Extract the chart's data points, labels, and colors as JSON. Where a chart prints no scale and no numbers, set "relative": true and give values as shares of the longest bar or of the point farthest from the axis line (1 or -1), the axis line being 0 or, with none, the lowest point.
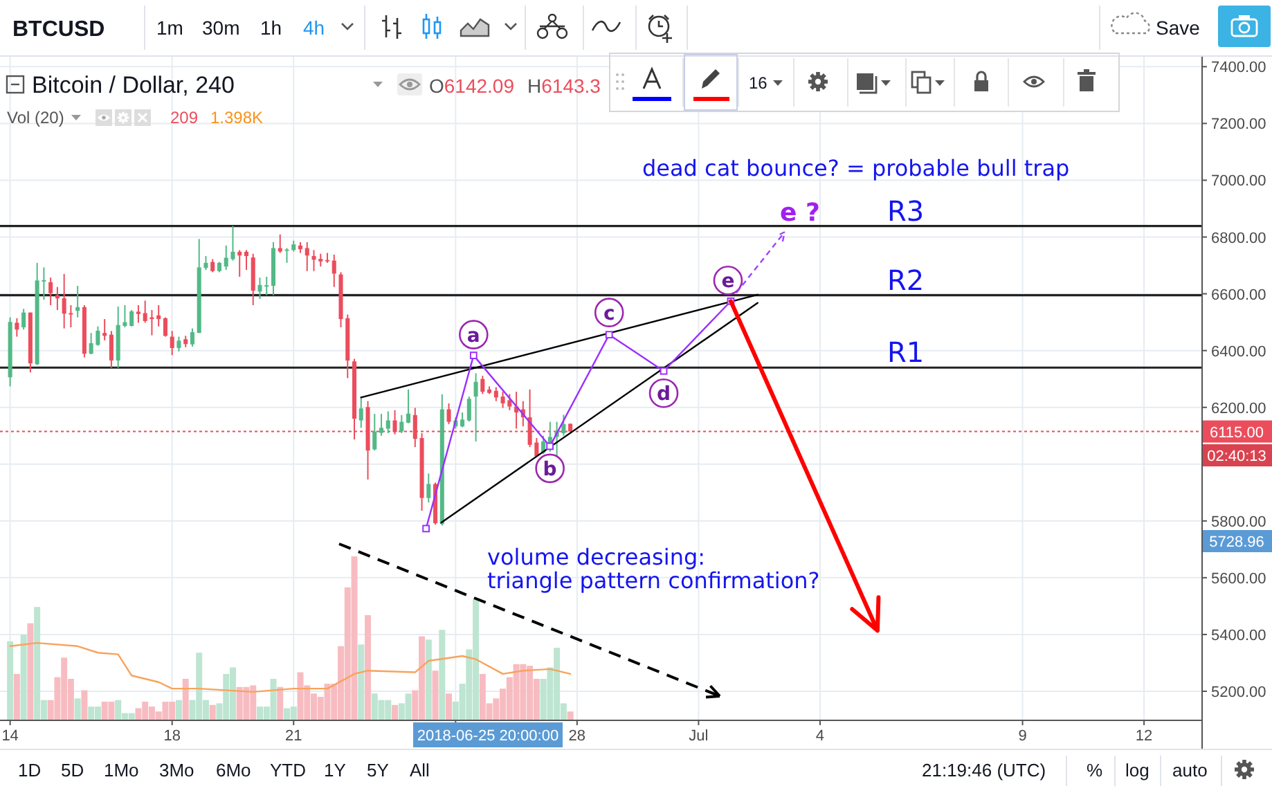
{
  "chart_data": [
    {
      "type": "candlestick",
      "title": "Bitcoin / Dollar, 240",
      "x": [
        "2018-06-14T00:00",
        "2018-06-14T04:00",
        "2018-06-14T08:00",
        "2018-06-14T12:00",
        "2018-06-14T16:00",
        "2018-06-14T20:00",
        "2018-06-15T00:00",
        "2018-06-15T04:00",
        "2018-06-15T08:00",
        "2018-06-15T12:00",
        "2018-06-15T16:00",
        "2018-06-15T20:00",
        "2018-06-16T00:00",
        "2018-06-16T04:00",
        "2018-06-16T08:00",
        "2018-06-16T12:00",
        "2018-06-16T16:00",
        "2018-06-16T20:00",
        "2018-06-17T00:00",
        "2018-06-17T04:00",
        "2018-06-17T08:00",
        "2018-06-17T12:00",
        "2018-06-17T16:00",
        "2018-06-17T20:00",
        "2018-06-18T00:00",
        "2018-06-18T04:00",
        "2018-06-18T08:00",
        "2018-06-18T12:00",
        "2018-06-18T16:00",
        "2018-06-18T20:00",
        "2018-06-19T00:00",
        "2018-06-19T04:00",
        "2018-06-19T08:00",
        "2018-06-19T12:00",
        "2018-06-19T16:00",
        "2018-06-19T20:00",
        "2018-06-20T00:00",
        "2018-06-20T04:00",
        "2018-06-20T08:00",
        "2018-06-20T12:00",
        "2018-06-20T16:00",
        "2018-06-20T20:00",
        "2018-06-21T00:00",
        "2018-06-21T04:00",
        "2018-06-21T08:00",
        "2018-06-21T12:00",
        "2018-06-21T16:00",
        "2018-06-21T20:00",
        "2018-06-22T00:00",
        "2018-06-22T04:00",
        "2018-06-22T08:00",
        "2018-06-22T12:00",
        "2018-06-22T16:00",
        "2018-06-22T20:00",
        "2018-06-23T00:00",
        "2018-06-23T04:00",
        "2018-06-23T08:00",
        "2018-06-23T12:00",
        "2018-06-23T16:00",
        "2018-06-23T20:00",
        "2018-06-24T00:00",
        "2018-06-24T04:00",
        "2018-06-24T08:00",
        "2018-06-24T12:00",
        "2018-06-24T16:00",
        "2018-06-24T20:00",
        "2018-06-25T00:00",
        "2018-06-25T04:00",
        "2018-06-25T08:00",
        "2018-06-25T12:00",
        "2018-06-25T16:00",
        "2018-06-25T20:00",
        "2018-06-26T00:00",
        "2018-06-26T04:00",
        "2018-06-26T08:00",
        "2018-06-26T12:00",
        "2018-06-26T16:00",
        "2018-06-26T20:00",
        "2018-06-27T00:00",
        "2018-06-27T04:00",
        "2018-06-27T08:00",
        "2018-06-27T12:00",
        "2018-06-27T16:00",
        "2018-06-27T20:00"
      ],
      "ohlc": [
        [
          6306,
          6517,
          6274,
          6501
        ],
        [
          6498,
          6514,
          6449,
          6474
        ],
        [
          6482,
          6547,
          6474,
          6534
        ],
        [
          6534,
          6534,
          6323,
          6355
        ],
        [
          6352,
          6709,
          6349,
          6647
        ],
        [
          6644,
          6693,
          6579,
          6648
        ],
        [
          6641,
          6657,
          6560,
          6602
        ],
        [
          6595,
          6624,
          6543,
          6584
        ],
        [
          6584,
          6670,
          6478,
          6530
        ],
        [
          6532,
          6560,
          6482,
          6528
        ],
        [
          6540,
          6628,
          6517,
          6553
        ],
        [
          6553,
          6560,
          6376,
          6389
        ],
        [
          6389,
          6462,
          6387,
          6426
        ],
        [
          6420,
          6485,
          6417,
          6470
        ],
        [
          6462,
          6511,
          6436,
          6452
        ],
        [
          6456,
          6469,
          6339,
          6365
        ],
        [
          6365,
          6555,
          6339,
          6490
        ],
        [
          6487,
          6560,
          6482,
          6500
        ],
        [
          6487,
          6543,
          6485,
          6538
        ],
        [
          6537,
          6560,
          6498,
          6529
        ],
        [
          6532,
          6576,
          6498,
          6504
        ],
        [
          6517,
          6543,
          6454,
          6511
        ],
        [
          6524,
          6560,
          6485,
          6511
        ],
        [
          6514,
          6517,
          6449,
          6452
        ],
        [
          6449,
          6469,
          6384,
          6409
        ],
        [
          6409,
          6449,
          6397,
          6435
        ],
        [
          6440,
          6452,
          6412,
          6423
        ],
        [
          6422,
          6478,
          6414,
          6465
        ],
        [
          6462,
          6793,
          6462,
          6693
        ],
        [
          6691,
          6733,
          6684,
          6709
        ],
        [
          6712,
          6722,
          6676,
          6680
        ],
        [
          6680,
          6712,
          6676,
          6709
        ],
        [
          6696,
          6770,
          6684,
          6727
        ],
        [
          6722,
          6839,
          6717,
          6748
        ],
        [
          6748,
          6754,
          6660,
          6735
        ],
        [
          6748,
          6754,
          6684,
          6733
        ],
        [
          6728,
          6741,
          6560,
          6611
        ],
        [
          6608,
          6657,
          6582,
          6631
        ],
        [
          6626,
          6660,
          6595,
          6630
        ],
        [
          6628,
          6782,
          6595,
          6761
        ],
        [
          6761,
          6809,
          6744,
          6749
        ],
        [
          6752,
          6761,
          6709,
          6756
        ],
        [
          6754,
          6787,
          6749,
          6774
        ],
        [
          6770,
          6782,
          6744,
          6757
        ],
        [
          6761,
          6782,
          6680,
          6735
        ],
        [
          6733,
          6754,
          6680,
          6720
        ],
        [
          6723,
          6741,
          6696,
          6714
        ],
        [
          6719,
          6744,
          6709,
          6715
        ],
        [
          6717,
          6738,
          6624,
          6671
        ],
        [
          6668,
          6676,
          6482,
          6511
        ],
        [
          6514,
          6527,
          6303,
          6365
        ],
        [
          6362,
          6371,
          6087,
          6160
        ],
        [
          6154,
          6238,
          6128,
          6196
        ],
        [
          6201,
          6222,
          5946,
          6048
        ],
        [
          6052,
          6177,
          6048,
          6115
        ],
        [
          6110,
          6177,
          6100,
          6128
        ],
        [
          6125,
          6186,
          6109,
          6154
        ],
        [
          6154,
          6190,
          6105,
          6113
        ],
        [
          6115,
          6173,
          6109,
          6149
        ],
        [
          6146,
          6263,
          6144,
          6178
        ],
        [
          6173,
          6198,
          6060,
          6089
        ],
        [
          6092,
          6109,
          5836,
          5881
        ],
        [
          5881,
          5967,
          5865,
          5930
        ],
        [
          5930,
          5935,
          5787,
          5792
        ],
        [
          5789,
          6246,
          5784,
          6193
        ],
        [
          6193,
          6214,
          6141,
          6149
        ],
        [
          6133,
          6165,
          6125,
          6154
        ],
        [
          6133,
          6182,
          6130,
          6157
        ],
        [
          6154,
          6238,
          6150,
          6230
        ],
        [
          6238,
          6320,
          6080,
          6290
        ],
        [
          6300,
          6311,
          6247,
          6255
        ],
        [
          6263,
          6274,
          6247,
          6251
        ],
        [
          6258,
          6271,
          6222,
          6235
        ],
        [
          6238,
          6255,
          6198,
          6214
        ],
        [
          6225,
          6247,
          6190,
          6203
        ],
        [
          6203,
          6255,
          6125,
          6182
        ],
        [
          6193,
          6222,
          6133,
          6165
        ],
        [
          6165,
          6263,
          6060,
          6068
        ],
        [
          6076,
          6092,
          6028,
          6028
        ],
        [
          6040,
          6100,
          6036,
          6080
        ],
        [
          6063,
          6149,
          6044,
          6096
        ],
        [
          6096,
          6149,
          6028,
          6117
        ],
        [
          6109,
          6174,
          6100,
          6141
        ],
        [
          6142.09,
          6143.3,
          6112,
          6115
        ]
      ],
      "colors": [
        "#53b987",
        "#eb4d5c",
        "#53b987",
        "#eb4d5c",
        "#53b987",
        "#53b987",
        "#eb4d5c",
        "#eb4d5c",
        "#eb4d5c",
        "#eb4d5c",
        "#53b987",
        "#eb4d5c",
        "#53b987",
        "#53b987",
        "#eb4d5c",
        "#eb4d5c",
        "#53b987",
        "#53b987",
        "#53b987",
        "#eb4d5c",
        "#eb4d5c",
        "#eb4d5c",
        "#eb4d5c",
        "#eb4d5c",
        "#eb4d5c",
        "#53b987",
        "#eb4d5c",
        "#53b987",
        "#53b987",
        "#53b987",
        "#eb4d5c",
        "#53b987",
        "#53b987",
        "#53b987",
        "#eb4d5c",
        "#eb4d5c",
        "#eb4d5c",
        "#53b987",
        "#53b987",
        "#53b987",
        "#eb4d5c",
        "#53b987",
        "#53b987",
        "#eb4d5c",
        "#eb4d5c",
        "#eb4d5c",
        "#eb4d5c",
        "#eb4d5c",
        "#eb4d5c",
        "#eb4d5c",
        "#eb4d5c",
        "#eb4d5c",
        "#53b987",
        "#eb4d5c",
        "#53b987",
        "#53b987",
        "#53b987",
        "#eb4d5c",
        "#53b987",
        "#53b987",
        "#eb4d5c",
        "#eb4d5c",
        "#53b987",
        "#eb4d5c",
        "#53b987",
        "#eb4d5c",
        "#53b987",
        "#53b987",
        "#53b987",
        "#53b987",
        "#eb4d5c",
        "#eb4d5c",
        "#eb4d5c",
        "#eb4d5c",
        "#eb4d5c",
        "#eb4d5c",
        "#eb4d5c",
        "#eb4d5c",
        "#eb4d5c",
        "#53b987",
        "#53b987",
        "#53b987",
        "#53b987",
        "#eb4d5c"
      ],
      "xlim": [
        "2018-06-13T18:00",
        "2018-07-13T10:00"
      ],
      "xticks": [
        {
          "value": "2018-06-14",
          "label": "14"
        },
        {
          "value": "2018-06-18",
          "label": "18"
        },
        {
          "value": "2018-06-21",
          "label": "21"
        },
        {
          "value": "2018-06-25",
          "label": null
        },
        {
          "value": "2018-06-28",
          "label": "28"
        },
        {
          "value": "2018-07-01",
          "label": "Jul"
        },
        {
          "value": "2018-07-04",
          "label": "4"
        },
        {
          "value": "2018-07-09",
          "label": "9"
        },
        {
          "value": "2018-07-12",
          "label": "12"
        }
      ],
      "ylim": [
        5100,
        7435
      ],
      "yticks": [
        {
          "value": 5200,
          "label": "5200.00"
        },
        {
          "value": 5400,
          "label": "5400.00"
        },
        {
          "value": 5600,
          "label": "5600.00"
        },
        {
          "value": 5800,
          "label": "5800.00"
        },
        {
          "value": 6000,
          "label": null
        },
        {
          "value": 6200,
          "label": "6200.00"
        },
        {
          "value": 6400,
          "label": "6400.00"
        },
        {
          "value": 6600,
          "label": "6600.00"
        },
        {
          "value": 6800,
          "label": "6800.00"
        },
        {
          "value": 7000,
          "label": "7000.00"
        },
        {
          "value": 7200,
          "label": "7200.00"
        },
        {
          "value": 7400,
          "label": "7400.00"
        }
      ],
      "grid": true,
      "series": [
        {
          "type": "line",
          "color": "#000000",
          "x": [
            "2018-06-22T16:00",
            "2018-07-02T11:00"
          ],
          "values": [
            6235,
            6597
          ]
        },
        {
          "type": "line",
          "color": "#000000",
          "x": [
            "2018-06-24T15:30",
            "2018-07-02T11:00"
          ],
          "values": [
            5794,
            6568
          ]
        },
        {
          "type": "line",
          "color": "#9b30ff",
          "marker": "square",
          "x": [
            "2018-06-24T06:30",
            "2018-06-25T10:40",
            "2018-06-27T07:55",
            "2018-06-28T19:00",
            "2018-06-30T03:20",
            "2018-07-01T19:05"
          ],
          "values": [
            5773,
            6383,
            6063,
            6456,
            6328,
            6574
          ]
        }
      ],
      "ref_lines": [
        {
          "axis": "y",
          "value": 6839,
          "label": "R3",
          "color": "#222222"
        },
        {
          "axis": "y",
          "value": 6595,
          "label": "R2",
          "color": "#222222"
        },
        {
          "axis": "y",
          "value": 6340,
          "label": "R1",
          "color": "#222222"
        },
        {
          "axis": "y",
          "value": 6115,
          "label": "6115.00",
          "color": "#eb4d5c",
          "line_style": "dotted"
        }
      ],
      "annotations": [
        "BTCUSD",
        "1m",
        "30m",
        "1h",
        "4h",
        "Save",
        "O6142.09",
        "H6143.3",
        "16",
        "1D",
        "5D",
        "1Mo",
        "3Mo",
        "6Mo",
        "YTD",
        "1Y",
        "5Y",
        "All",
        "21:19:46 (UTC)",
        "%",
        "log",
        "auto",
        "dead cat bounce? = probable bull trap",
        "02:40:13",
        "5728.96",
        "2018-06-25 20:00:00",
        {
          "text": "a",
          "x": "2018-06-25T10:40",
          "y": 6383
        },
        {
          "text": "b",
          "x": "2018-06-27T07:55",
          "y": 6063
        },
        {
          "text": "c",
          "x": "2018-06-28T19:00",
          "y": 6456
        },
        {
          "text": "d",
          "x": "2018-06-30T03:20",
          "y": 6328
        },
        {
          "text": "e",
          "x": "2018-07-01T19:05",
          "y": 6574
        },
        {
          "text": "e ?",
          "x": "2018-07-01T19:05",
          "y": 6574
        }
      ]
    },
    {
      "type": "bar",
      "title": "Vol (20)",
      "relative": true,
      "xlim": [
        "2018-06-13T18:00",
        "2018-07-13T10:00"
      ],
      "series": [
        {
          "type": "bar",
          "x": [
            "2018-06-14T00:00",
            "2018-06-14T04:00",
            "2018-06-14T08:00",
            "2018-06-14T12:00",
            "2018-06-14T16:00",
            "2018-06-14T20:00",
            "2018-06-15T00:00",
            "2018-06-15T04:00",
            "2018-06-15T08:00",
            "2018-06-15T12:00",
            "2018-06-15T16:00",
            "2018-06-15T20:00",
            "2018-06-16T00:00",
            "2018-06-16T04:00",
            "2018-06-16T08:00",
            "2018-06-16T12:00",
            "2018-06-16T16:00",
            "2018-06-16T20:00",
            "2018-06-17T00:00",
            "2018-06-17T04:00",
            "2018-06-17T08:00",
            "2018-06-17T12:00",
            "2018-06-17T16:00",
            "2018-06-17T20:00",
            "2018-06-18T00:00",
            "2018-06-18T04:00",
            "2018-06-18T08:00",
            "2018-06-18T12:00",
            "2018-06-18T16:00",
            "2018-06-18T20:00",
            "2018-06-19T00:00",
            "2018-06-19T04:00",
            "2018-06-19T08:00",
            "2018-06-19T12:00",
            "2018-06-19T16:00",
            "2018-06-19T20:00",
            "2018-06-20T00:00",
            "2018-06-20T04:00",
            "2018-06-20T08:00",
            "2018-06-20T12:00",
            "2018-06-20T16:00",
            "2018-06-20T20:00",
            "2018-06-21T00:00",
            "2018-06-21T04:00",
            "2018-06-21T08:00",
            "2018-06-21T12:00",
            "2018-06-21T16:00",
            "2018-06-21T20:00",
            "2018-06-22T00:00",
            "2018-06-22T04:00",
            "2018-06-22T08:00",
            "2018-06-22T12:00",
            "2018-06-22T16:00",
            "2018-06-22T20:00",
            "2018-06-23T00:00",
            "2018-06-23T04:00",
            "2018-06-23T08:00",
            "2018-06-23T12:00",
            "2018-06-23T16:00",
            "2018-06-23T20:00",
            "2018-06-24T00:00",
            "2018-06-24T04:00",
            "2018-06-24T08:00",
            "2018-06-24T12:00",
            "2018-06-24T16:00",
            "2018-06-24T20:00",
            "2018-06-25T00:00",
            "2018-06-25T04:00",
            "2018-06-25T08:00",
            "2018-06-25T12:00",
            "2018-06-25T16:00",
            "2018-06-25T20:00",
            "2018-06-26T00:00",
            "2018-06-26T04:00",
            "2018-06-26T08:00",
            "2018-06-26T12:00",
            "2018-06-26T16:00",
            "2018-06-26T20:00",
            "2018-06-27T00:00",
            "2018-06-27T04:00",
            "2018-06-27T08:00",
            "2018-06-27T12:00",
            "2018-06-27T16:00",
            "2018-06-27T20:00"
          ],
          "values": [
            0.48,
            0.28,
            0.52,
            0.59,
            0.69,
            0.12,
            0.12,
            0.26,
            0.38,
            0.25,
            0.13,
            0.18,
            0.08,
            0.08,
            0.11,
            0.11,
            0.12,
            0.04,
            0.04,
            0.07,
            0.11,
            0.08,
            0.05,
            0.11,
            0.11,
            0.12,
            0.25,
            0.12,
            0.41,
            0.12,
            0.09,
            0.1,
            0.28,
            0.32,
            0.2,
            0.2,
            0.21,
            0.08,
            0.08,
            0.25,
            0.2,
            0.07,
            0.08,
            0.29,
            0.21,
            0.16,
            0.14,
            0.22,
            0.22,
            0.45,
            0.81,
            1,
            0.46,
            0.64,
            0.16,
            0.12,
            0.12,
            0.09,
            0.1,
            0.16,
            0.18,
            0.51,
            0.49,
            0.3,
            0.55,
            0.16,
            0.11,
            0.22,
            0.43,
            0.74,
            0.28,
            0.1,
            0.13,
            0.19,
            0.26,
            0.34,
            0.34,
            0.33,
            0.25,
            0.25,
            0.32,
            0.44,
            0.1,
            0.05
          ],
          "colors": [
            "#bde5d1",
            "#f7bcc1",
            "#bde5d1",
            "#f7bcc1",
            "#bde5d1",
            "#bde5d1",
            "#f7bcc1",
            "#f7bcc1",
            "#f7bcc1",
            "#f7bcc1",
            "#bde5d1",
            "#f7bcc1",
            "#bde5d1",
            "#bde5d1",
            "#f7bcc1",
            "#f7bcc1",
            "#bde5d1",
            "#bde5d1",
            "#bde5d1",
            "#f7bcc1",
            "#f7bcc1",
            "#f7bcc1",
            "#f7bcc1",
            "#f7bcc1",
            "#f7bcc1",
            "#bde5d1",
            "#f7bcc1",
            "#bde5d1",
            "#bde5d1",
            "#bde5d1",
            "#f7bcc1",
            "#bde5d1",
            "#bde5d1",
            "#bde5d1",
            "#f7bcc1",
            "#f7bcc1",
            "#f7bcc1",
            "#bde5d1",
            "#bde5d1",
            "#bde5d1",
            "#f7bcc1",
            "#bde5d1",
            "#bde5d1",
            "#f7bcc1",
            "#f7bcc1",
            "#f7bcc1",
            "#f7bcc1",
            "#f7bcc1",
            "#f7bcc1",
            "#f7bcc1",
            "#f7bcc1",
            "#f7bcc1",
            "#bde5d1",
            "#f7bcc1",
            "#bde5d1",
            "#bde5d1",
            "#bde5d1",
            "#f7bcc1",
            "#bde5d1",
            "#bde5d1",
            "#f7bcc1",
            "#f7bcc1",
            "#bde5d1",
            "#f7bcc1",
            "#bde5d1",
            "#f7bcc1",
            "#bde5d1",
            "#bde5d1",
            "#bde5d1",
            "#bde5d1",
            "#f7bcc1",
            "#f7bcc1",
            "#f7bcc1",
            "#f7bcc1",
            "#f7bcc1",
            "#f7bcc1",
            "#f7bcc1",
            "#f7bcc1",
            "#f7bcc1",
            "#bde5d1",
            "#bde5d1",
            "#bde5d1",
            "#bde5d1",
            "#f7bcc1"
          ]
        },
        {
          "type": "line",
          "color": "#f7a35c",
          "x": [
            "2018-06-14T00:00",
            "2018-06-14T16:00",
            "2018-06-15T16:00",
            "2018-06-16T04:00",
            "2018-06-16T16:00",
            "2018-06-17T00:00",
            "2018-06-17T16:00",
            "2018-06-18T00:00",
            "2018-06-18T16:00",
            "2018-06-20T00:00",
            "2018-06-21T00:00",
            "2018-06-21T20:00",
            "2018-06-22T12:00",
            "2018-06-22T20:00",
            "2018-06-24T00:00",
            "2018-06-24T08:00",
            "2018-06-25T04:00",
            "2018-06-25T12:00",
            "2018-06-26T04:00",
            "2018-06-26T16:00",
            "2018-06-27T08:00",
            "2018-06-27T20:00"
          ],
          "values": [
            0.45,
            0.47,
            0.45,
            0.41,
            0.4,
            0.27,
            0.23,
            0.19,
            0.19,
            0.17,
            0.19,
            0.19,
            0.28,
            0.3,
            0.29,
            0.36,
            0.39,
            0.37,
            0.28,
            0.3,
            0.31,
            0.28
          ]
        }
      ],
      "annotations": [
        "209",
        "1.398K",
        "volume decreasing:\ntriangle pattern confirmation?"
      ]
    }
  ]
}
